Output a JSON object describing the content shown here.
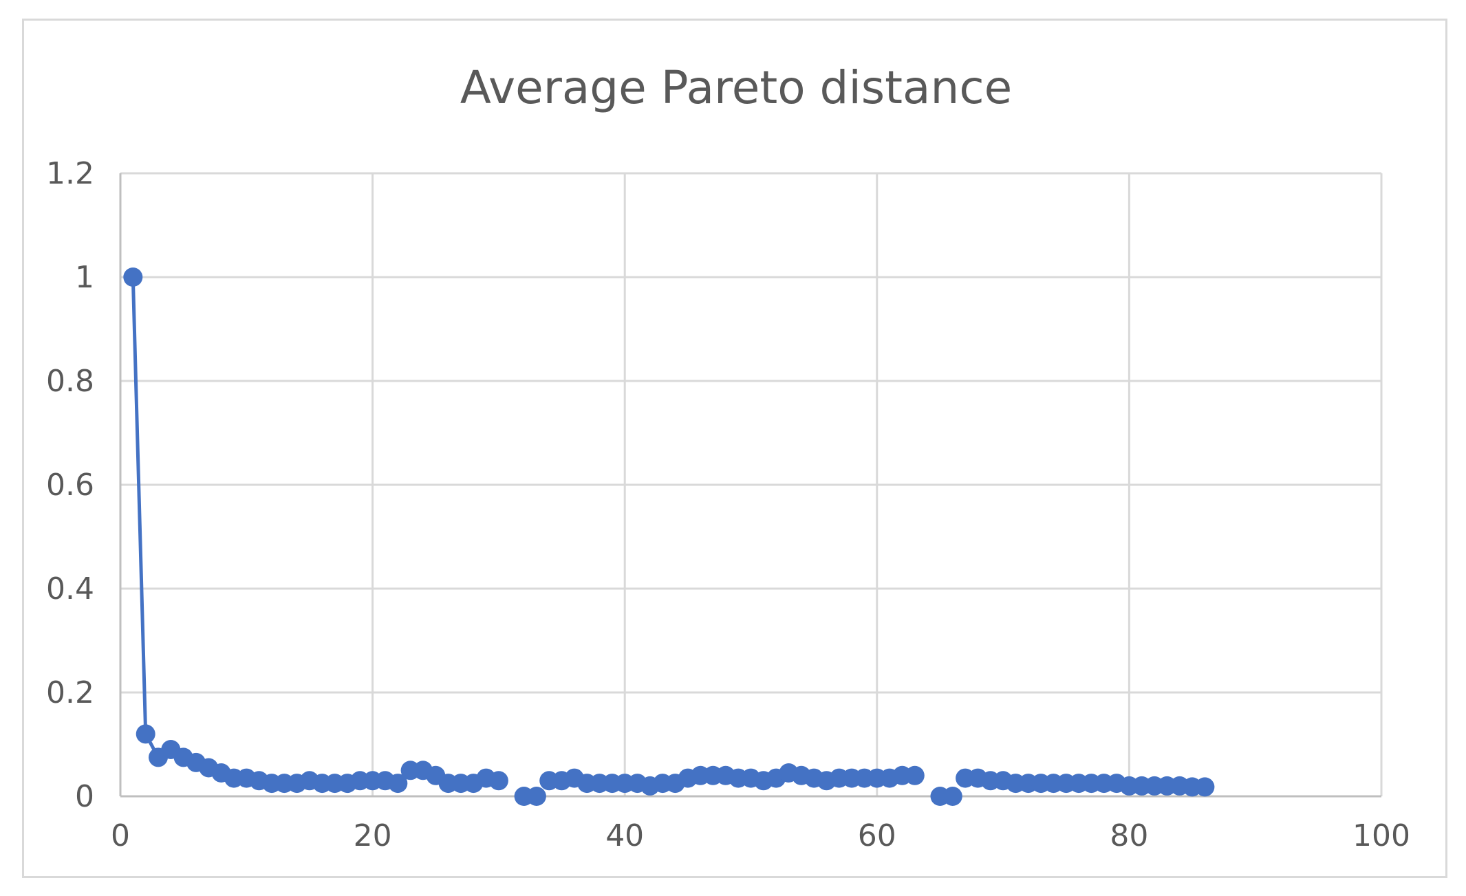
{
  "chart_data": {
    "type": "line",
    "title": "Average Pareto distance",
    "xlabel": "",
    "ylabel": "",
    "xlim": [
      0,
      100
    ],
    "ylim": [
      0,
      1.2
    ],
    "x_ticks": [
      "0",
      "20",
      "40",
      "60",
      "80",
      "100"
    ],
    "y_ticks": [
      "0",
      "0.2",
      "0.4",
      "0.6",
      "0.8",
      "1",
      "1.2"
    ],
    "grid": true,
    "legend": "none",
    "markers": true,
    "series_color": "#4472C4",
    "series": [
      {
        "x": [
          1,
          2,
          3,
          4,
          5,
          6,
          7,
          8,
          9,
          10,
          11,
          12,
          13,
          14,
          15,
          16,
          17,
          18,
          19,
          20,
          21,
          22,
          23,
          24,
          25,
          26,
          27,
          28,
          29,
          30,
          32,
          33,
          34,
          35,
          36,
          37,
          38,
          39,
          40,
          41,
          42,
          43,
          44,
          45,
          46,
          47,
          48,
          49,
          50,
          51,
          52,
          53,
          54,
          55,
          56,
          57,
          58,
          59,
          60,
          61,
          62,
          63,
          65,
          66,
          67,
          68,
          69,
          70,
          71,
          72,
          73,
          74,
          75,
          76,
          77,
          78,
          79,
          80,
          81,
          82,
          83,
          84,
          85,
          86
        ],
        "values": [
          1.0,
          0.12,
          0.075,
          0.09,
          0.075,
          0.065,
          0.055,
          0.045,
          0.035,
          0.035,
          0.03,
          0.025,
          0.025,
          0.025,
          0.03,
          0.025,
          0.025,
          0.025,
          0.03,
          0.03,
          0.03,
          0.025,
          0.05,
          0.05,
          0.04,
          0.025,
          0.025,
          0.025,
          0.035,
          0.03,
          0.0,
          0.0,
          0.03,
          0.03,
          0.035,
          0.025,
          0.025,
          0.025,
          0.025,
          0.025,
          0.02,
          0.025,
          0.025,
          0.035,
          0.04,
          0.04,
          0.04,
          0.035,
          0.035,
          0.03,
          0.035,
          0.045,
          0.04,
          0.035,
          0.03,
          0.035,
          0.035,
          0.035,
          0.035,
          0.035,
          0.04,
          0.04,
          0.0,
          0.0,
          0.035,
          0.035,
          0.03,
          0.03,
          0.025,
          0.025,
          0.025,
          0.025,
          0.025,
          0.025,
          0.025,
          0.025,
          0.025,
          0.02,
          0.02,
          0.02,
          0.02,
          0.02,
          0.018,
          0.018
        ],
        "connect_segments": [
          [
            1,
            30
          ],
          [
            32,
            33
          ],
          [
            34,
            63
          ],
          [
            65,
            66
          ],
          [
            67,
            86
          ]
        ]
      }
    ]
  }
}
